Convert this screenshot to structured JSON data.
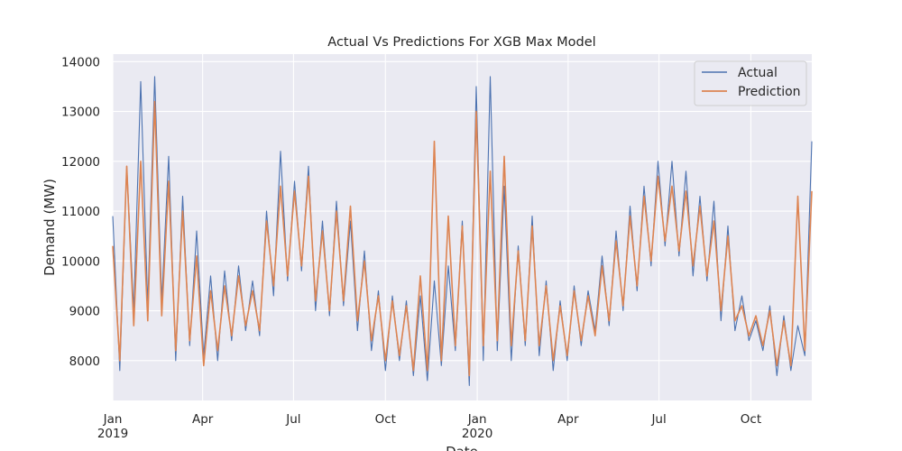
{
  "chart_data": {
    "type": "line",
    "title": "Actual Vs Predictions For XGB Max Model",
    "xlabel": "Date",
    "ylabel": "Demand (MW)",
    "xlim": [
      "2019-01-01",
      "2020-12-01"
    ],
    "ylim": [
      7200,
      14150
    ],
    "x_ticks": [
      {
        "date": "2019-01-01",
        "label": "Jan",
        "sublabel": "2019"
      },
      {
        "date": "2019-04-01",
        "label": "Apr",
        "sublabel": ""
      },
      {
        "date": "2019-07-01",
        "label": "Jul",
        "sublabel": ""
      },
      {
        "date": "2019-10-01",
        "label": "Oct",
        "sublabel": ""
      },
      {
        "date": "2020-01-01",
        "label": "Jan",
        "sublabel": "2020"
      },
      {
        "date": "2020-04-01",
        "label": "Apr",
        "sublabel": ""
      },
      {
        "date": "2020-07-01",
        "label": "Jul",
        "sublabel": ""
      },
      {
        "date": "2020-10-01",
        "label": "Oct",
        "sublabel": ""
      }
    ],
    "y_ticks": [
      {
        "value": 8000,
        "label": "8000"
      },
      {
        "value": 9000,
        "label": "9000"
      },
      {
        "value": 10000,
        "label": "10000"
      },
      {
        "value": 11000,
        "label": "11000"
      },
      {
        "value": 12000,
        "label": "12000"
      },
      {
        "value": 13000,
        "label": "13000"
      },
      {
        "value": 14000,
        "label": "14000"
      }
    ],
    "grid": true,
    "legend_position": "top-right",
    "colors": {
      "background": "#eaeaf2",
      "grid": "#ffffff",
      "actual": "#4c72b0",
      "prediction": "#dd8452"
    },
    "series": [
      {
        "name": "Actual",
        "x": [
          "2019-01-01",
          "2019-01-08",
          "2019-01-15",
          "2019-01-22",
          "2019-01-29",
          "2019-02-05",
          "2019-02-12",
          "2019-02-19",
          "2019-02-26",
          "2019-03-05",
          "2019-03-12",
          "2019-03-19",
          "2019-03-26",
          "2019-04-02",
          "2019-04-09",
          "2019-04-16",
          "2019-04-23",
          "2019-04-30",
          "2019-05-07",
          "2019-05-14",
          "2019-05-21",
          "2019-05-28",
          "2019-06-04",
          "2019-06-11",
          "2019-06-18",
          "2019-06-25",
          "2019-07-02",
          "2019-07-09",
          "2019-07-16",
          "2019-07-23",
          "2019-07-30",
          "2019-08-06",
          "2019-08-13",
          "2019-08-20",
          "2019-08-27",
          "2019-09-03",
          "2019-09-10",
          "2019-09-17",
          "2019-09-24",
          "2019-10-01",
          "2019-10-08",
          "2019-10-15",
          "2019-10-22",
          "2019-10-29",
          "2019-11-05",
          "2019-11-12",
          "2019-11-19",
          "2019-11-26",
          "2019-12-03",
          "2019-12-10",
          "2019-12-17",
          "2019-12-24",
          "2019-12-31",
          "2020-01-07",
          "2020-01-14",
          "2020-01-21",
          "2020-01-28",
          "2020-02-04",
          "2020-02-11",
          "2020-02-18",
          "2020-02-25",
          "2020-03-03",
          "2020-03-10",
          "2020-03-17",
          "2020-03-24",
          "2020-03-31",
          "2020-04-07",
          "2020-04-14",
          "2020-04-21",
          "2020-04-28",
          "2020-05-05",
          "2020-05-12",
          "2020-05-19",
          "2020-05-26",
          "2020-06-02",
          "2020-06-09",
          "2020-06-16",
          "2020-06-23",
          "2020-06-30",
          "2020-07-07",
          "2020-07-14",
          "2020-07-21",
          "2020-07-28",
          "2020-08-04",
          "2020-08-11",
          "2020-08-18",
          "2020-08-25",
          "2020-09-01",
          "2020-09-08",
          "2020-09-15",
          "2020-09-22",
          "2020-09-29",
          "2020-10-06",
          "2020-10-13",
          "2020-10-20",
          "2020-10-27",
          "2020-11-03",
          "2020-11-10",
          "2020-11-17",
          "2020-11-24",
          "2020-12-01"
        ],
        "values": [
          10900,
          7800,
          11900,
          9000,
          13600,
          9100,
          13700,
          9200,
          12100,
          8000,
          11300,
          8300,
          10600,
          8100,
          9700,
          8000,
          9800,
          8400,
          9900,
          8600,
          9600,
          8500,
          11000,
          9300,
          12200,
          9600,
          11600,
          9800,
          11900,
          9000,
          10800,
          8900,
          11200,
          9100,
          10800,
          8600,
          10200,
          8200,
          9400,
          7800,
          9300,
          8000,
          9200,
          7700,
          9300,
          7600,
          9600,
          7900,
          9900,
          8200,
          10800,
          7500,
          13500,
          8000,
          13700,
          8200,
          11500,
          8000,
          10300,
          8300,
          10900,
          8100,
          9600,
          7800,
          9200,
          8000,
          9500,
          8300,
          9400,
          8600,
          10100,
          8700,
          10600,
          9000,
          11100,
          9400,
          11500,
          9900,
          12000,
          10300,
          12000,
          10100,
          11800,
          9700,
          11300,
          9600,
          11200,
          8800,
          10700,
          8600,
          9300,
          8400,
          8800,
          8200,
          9100,
          7700,
          8900,
          7800,
          8700,
          8100,
          12400
        ]
      },
      {
        "name": "Prediction",
        "x": [
          "2019-01-01",
          "2019-01-08",
          "2019-01-15",
          "2019-01-22",
          "2019-01-29",
          "2019-02-05",
          "2019-02-12",
          "2019-02-19",
          "2019-02-26",
          "2019-03-05",
          "2019-03-12",
          "2019-03-19",
          "2019-03-26",
          "2019-04-02",
          "2019-04-09",
          "2019-04-16",
          "2019-04-23",
          "2019-04-30",
          "2019-05-07",
          "2019-05-14",
          "2019-05-21",
          "2019-05-28",
          "2019-06-04",
          "2019-06-11",
          "2019-06-18",
          "2019-06-25",
          "2019-07-02",
          "2019-07-09",
          "2019-07-16",
          "2019-07-23",
          "2019-07-30",
          "2019-08-06",
          "2019-08-13",
          "2019-08-20",
          "2019-08-27",
          "2019-09-03",
          "2019-09-10",
          "2019-09-17",
          "2019-09-24",
          "2019-10-01",
          "2019-10-08",
          "2019-10-15",
          "2019-10-22",
          "2019-10-29",
          "2019-11-05",
          "2019-11-12",
          "2019-11-19",
          "2019-11-26",
          "2019-12-03",
          "2019-12-10",
          "2019-12-17",
          "2019-12-24",
          "2019-12-31",
          "2020-01-07",
          "2020-01-14",
          "2020-01-21",
          "2020-01-28",
          "2020-02-04",
          "2020-02-11",
          "2020-02-18",
          "2020-02-25",
          "2020-03-03",
          "2020-03-10",
          "2020-03-17",
          "2020-03-24",
          "2020-03-31",
          "2020-04-07",
          "2020-04-14",
          "2020-04-21",
          "2020-04-28",
          "2020-05-05",
          "2020-05-12",
          "2020-05-19",
          "2020-05-26",
          "2020-06-02",
          "2020-06-09",
          "2020-06-16",
          "2020-06-23",
          "2020-06-30",
          "2020-07-07",
          "2020-07-14",
          "2020-07-21",
          "2020-07-28",
          "2020-08-04",
          "2020-08-11",
          "2020-08-18",
          "2020-08-25",
          "2020-09-01",
          "2020-09-08",
          "2020-09-15",
          "2020-09-22",
          "2020-09-29",
          "2020-10-06",
          "2020-10-13",
          "2020-10-20",
          "2020-10-27",
          "2020-11-03",
          "2020-11-10",
          "2020-11-17",
          "2020-11-24",
          "2020-12-01"
        ],
        "values": [
          10300,
          8000,
          11900,
          8700,
          12000,
          8800,
          13200,
          8900,
          11600,
          8200,
          11000,
          8400,
          10100,
          7900,
          9400,
          8200,
          9500,
          8500,
          9700,
          8700,
          9400,
          8600,
          10800,
          9500,
          11500,
          9700,
          11400,
          9900,
          11700,
          9200,
          10600,
          9000,
          11000,
          9200,
          11100,
          8800,
          10000,
          8400,
          9300,
          8000,
          9200,
          8100,
          9100,
          7800,
          9700,
          7800,
          12400,
          8000,
          10900,
          8300,
          10700,
          7700,
          13000,
          8300,
          11800,
          8400,
          12100,
          8300,
          10200,
          8400,
          10700,
          8300,
          9500,
          8000,
          9100,
          8100,
          9400,
          8400,
          9300,
          8500,
          9900,
          8800,
          10400,
          9100,
          10900,
          9500,
          11300,
          10000,
          11700,
          10400,
          11500,
          10200,
          11400,
          9900,
          11100,
          9700,
          10800,
          9000,
          10500,
          8800,
          9100,
          8500,
          8900,
          8300,
          9000,
          7900,
          8800,
          7900,
          11300,
          8200,
          11400
        ]
      }
    ]
  }
}
